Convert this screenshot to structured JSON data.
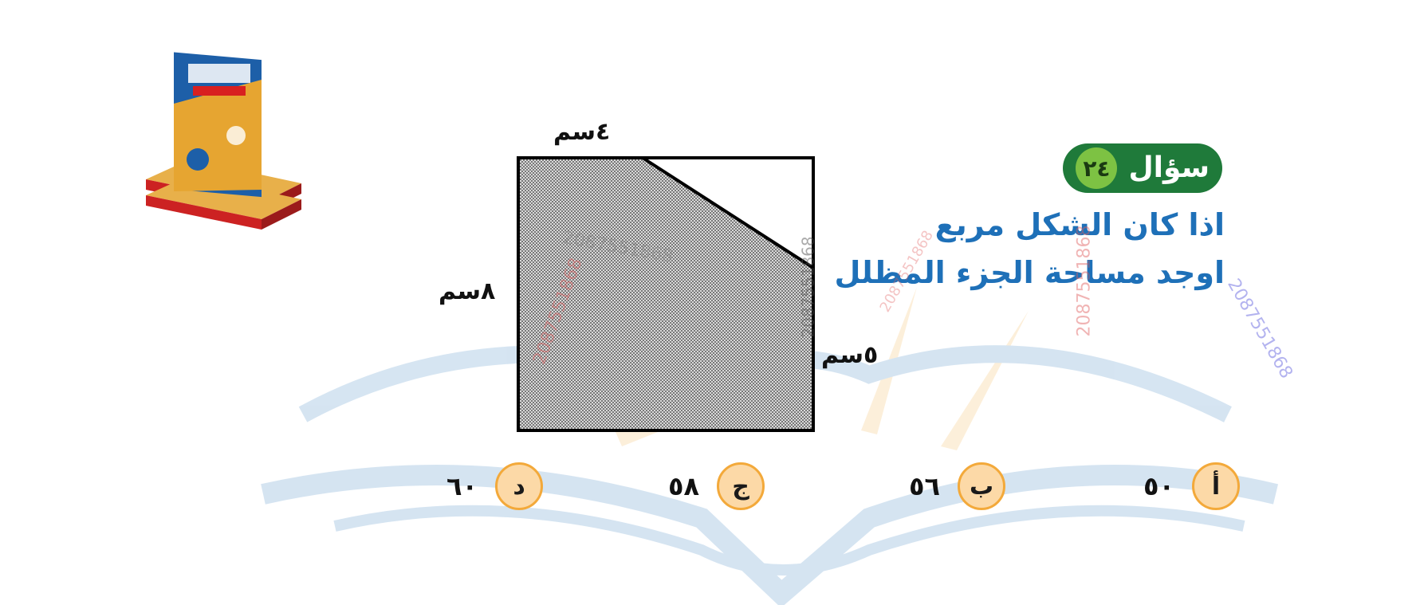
{
  "question": {
    "badge_word": "سؤال",
    "badge_number": "٢٤",
    "line1": "اذا كان الشكل مربع",
    "line2": "اوجد مساحة الجزء المظلل"
  },
  "figure": {
    "label_top": "٤سم",
    "label_left": "٨سم",
    "label_right": "٥سم"
  },
  "choices": [
    {
      "letter": "أ",
      "value": "٥٠"
    },
    {
      "letter": "ب",
      "value": "٥٦"
    },
    {
      "letter": "ج",
      "value": "٥٨"
    },
    {
      "letter": "د",
      "value": "٦٠"
    }
  ],
  "watermarks": [
    "2087551868",
    "2087551868",
    "2087551868",
    "2087551868",
    "2087551868",
    "2087551868"
  ],
  "colors": {
    "question_text": "#1e70b8",
    "badge_bg": "#1f7a3a",
    "badge_number_bg": "#7dc243",
    "choice_circle": "#fcd9a7",
    "choice_border": "#f3a93a"
  }
}
